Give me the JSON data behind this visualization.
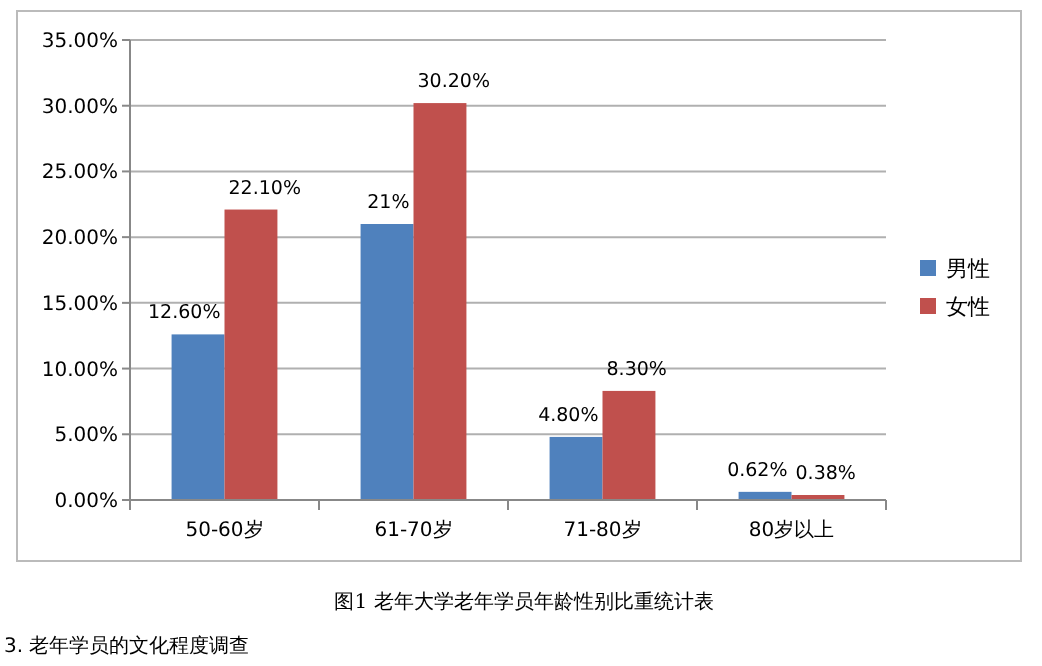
{
  "chart_data": {
    "type": "bar",
    "categories": [
      "50-60岁",
      "61-70岁",
      "71-80岁",
      "80岁以上"
    ],
    "series": [
      {
        "name": "男性",
        "color": "#4f81bd",
        "values": [
          12.6,
          21,
          4.8,
          0.62
        ],
        "value_labels": [
          "12.60%",
          "21%",
          "4.80%",
          "0.62%"
        ]
      },
      {
        "name": "女性",
        "color": "#c0504d",
        "values": [
          22.1,
          30.2,
          8.3,
          0.38
        ],
        "value_labels": [
          "22.10%",
          "30.20%",
          "8.30%",
          "0.38%"
        ]
      }
    ],
    "ylim": [
      0,
      35
    ],
    "yticks": [
      {
        "value": 0,
        "label": "0.00%"
      },
      {
        "value": 5,
        "label": "5.00%"
      },
      {
        "value": 10,
        "label": "10.00%"
      },
      {
        "value": 15,
        "label": "15.00%"
      },
      {
        "value": 20,
        "label": "20.00%"
      },
      {
        "value": 25,
        "label": "25.00%"
      },
      {
        "value": 30,
        "label": "30.00%"
      },
      {
        "value": 35,
        "label": "35.00%"
      }
    ],
    "grid": "y",
    "legend": "right",
    "annotations": [
      "图1  老年大学老年学员年龄性别比重统计表",
      "3. 老年学员的文化程度调查"
    ]
  }
}
